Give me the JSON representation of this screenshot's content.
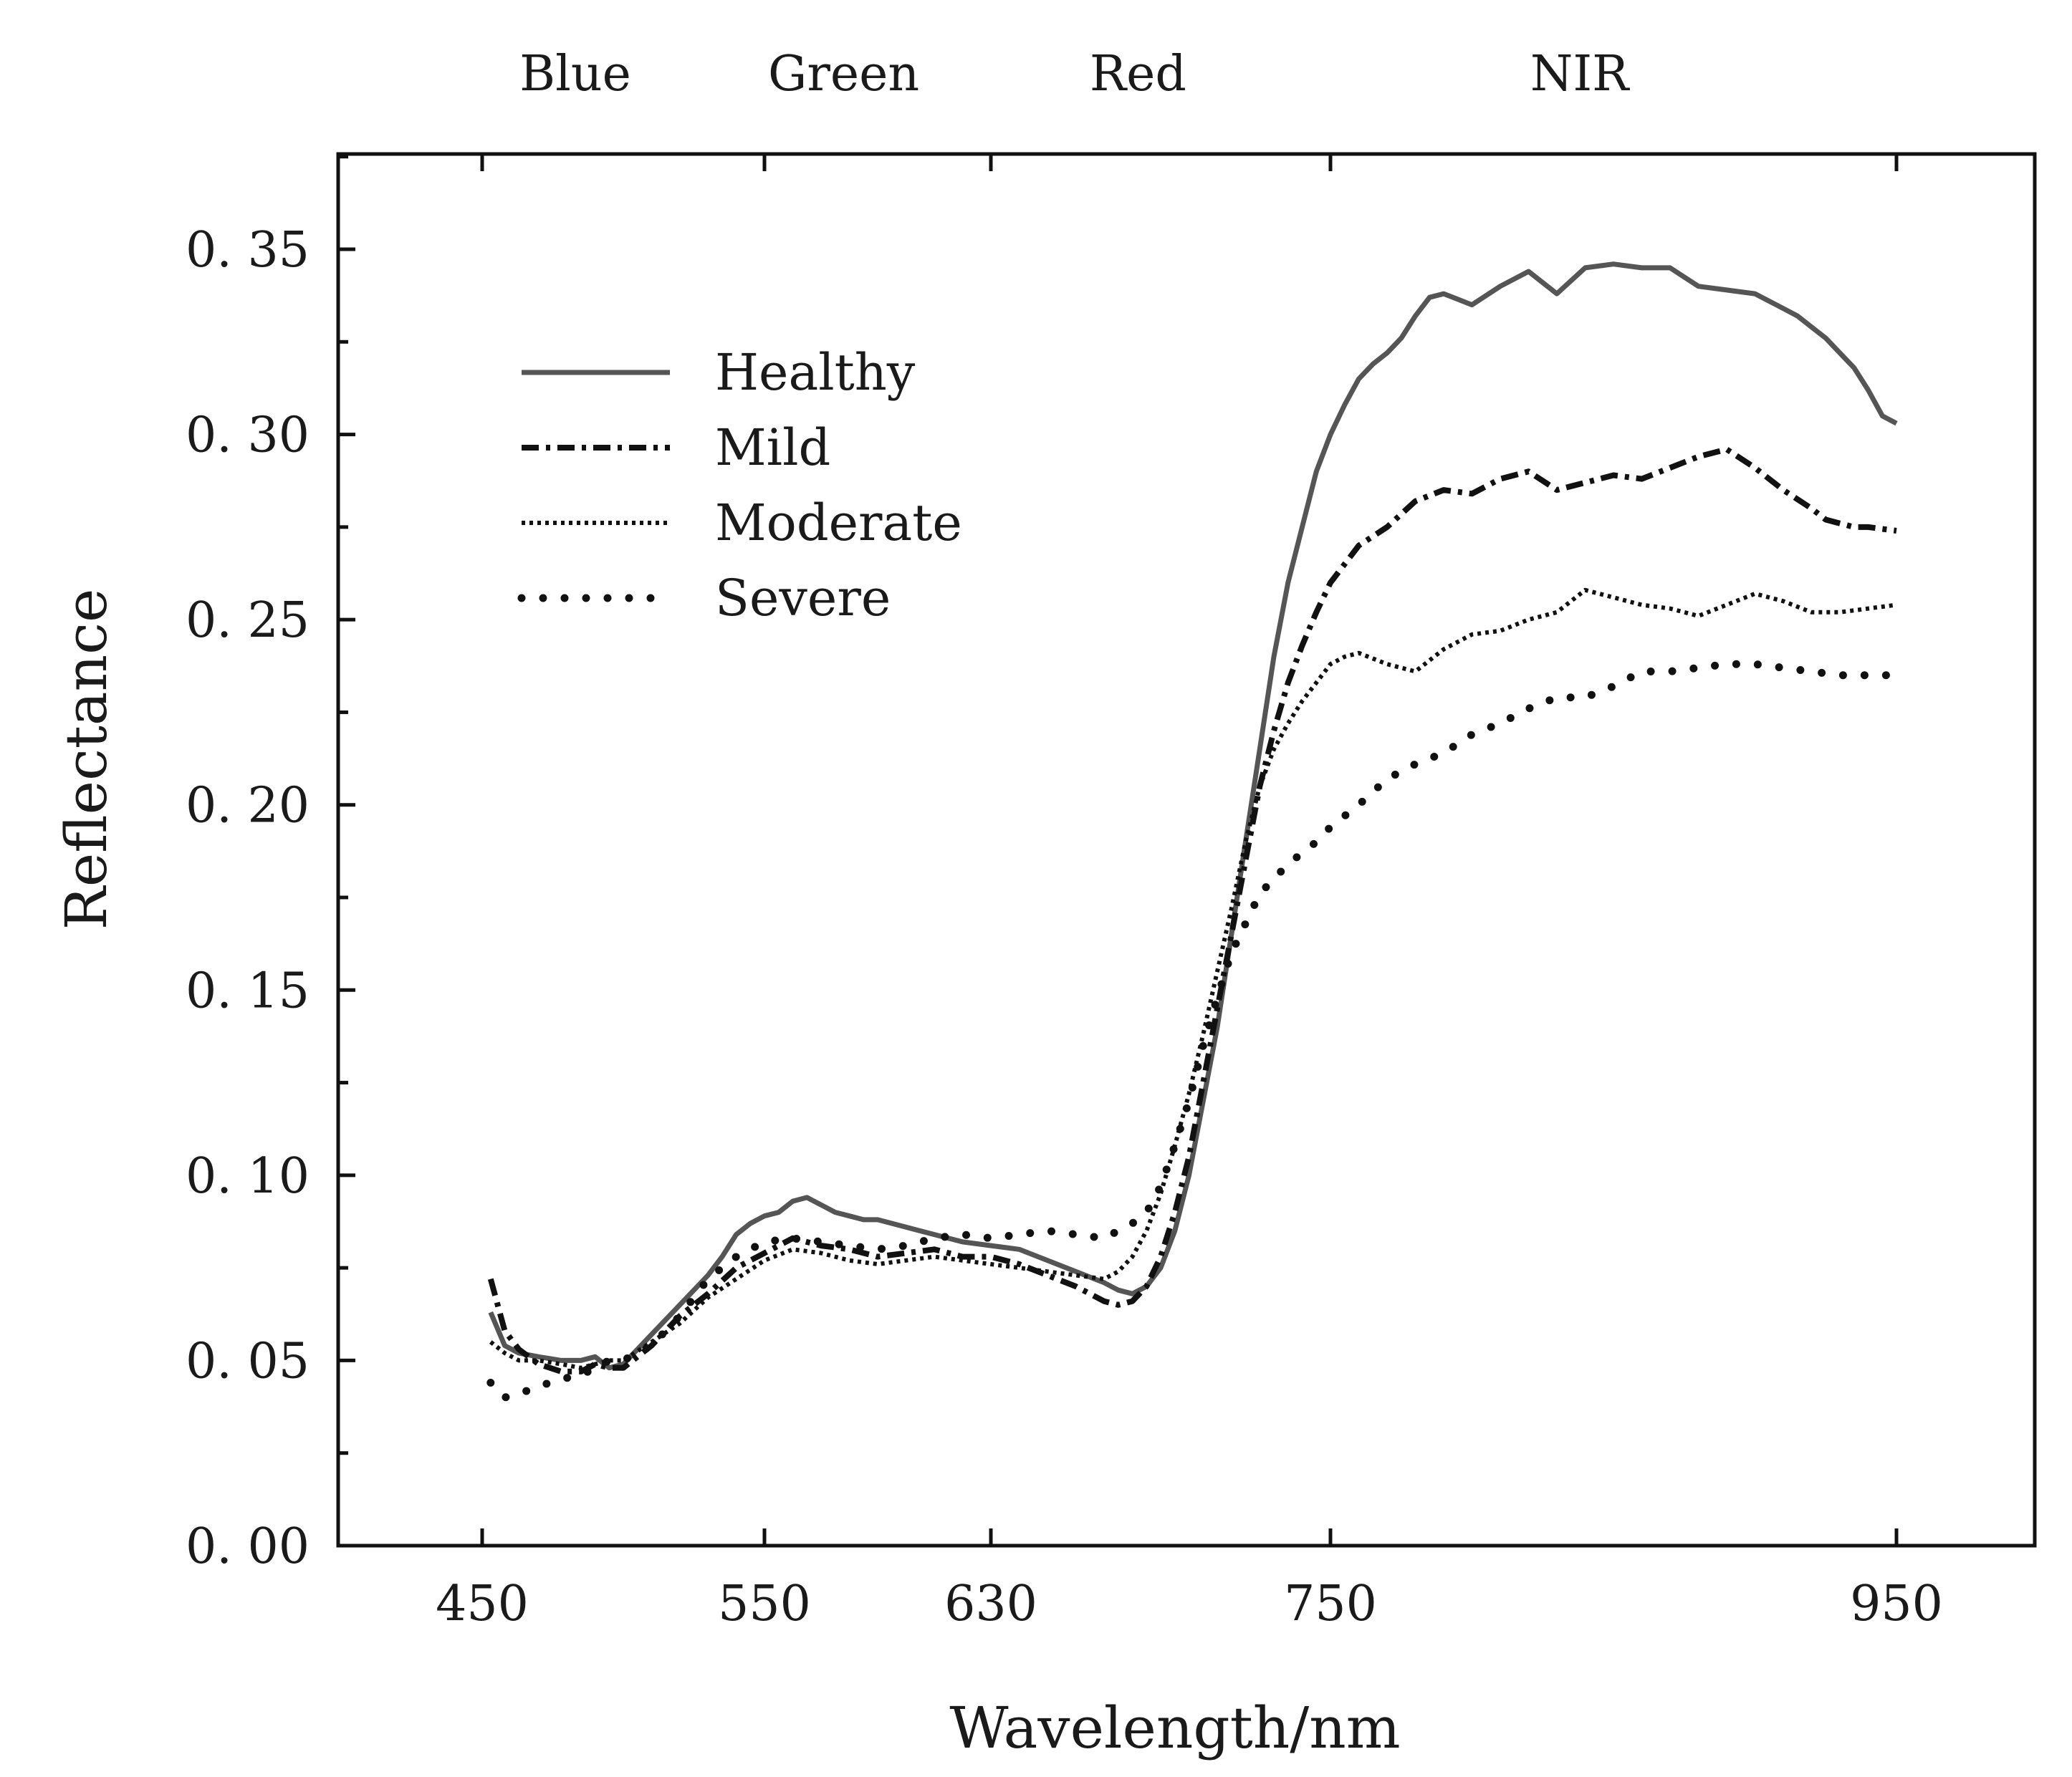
{
  "chart_data": {
    "type": "line",
    "title": "",
    "xlabel": "Wavelength/nm",
    "ylabel": "Reflectance",
    "xlim": [
      400,
      1000
    ],
    "ylim": [
      0,
      0.375
    ],
    "x_ticks": [
      450,
      550,
      630,
      750,
      950
    ],
    "x_tick_labels": [
      "450",
      "550",
      "630",
      "750",
      "950"
    ],
    "y_ticks": [
      0,
      0.05,
      0.1,
      0.15,
      0.2,
      0.25,
      0.3,
      0.35
    ],
    "y_tick_labels": [
      "0. 00",
      "0. 05",
      "0. 10",
      "0. 15",
      "0. 20",
      "0. 25",
      "0. 30",
      "0. 35"
    ],
    "y_minor_step": 0.025,
    "band_labels": [
      {
        "label": "Blue",
        "x": 483
      },
      {
        "label": "Green",
        "x": 578
      },
      {
        "label": "Red",
        "x": 682
      },
      {
        "label": "NIR",
        "x": 838
      }
    ],
    "legend_position": "upper-left",
    "grid": false,
    "series": [
      {
        "name": "Healthy",
        "style": "solid",
        "color": "#555555",
        "x": [
          453,
          458,
          463,
          470,
          478,
          485,
          490,
          495,
          500,
          505,
          510,
          520,
          530,
          535,
          540,
          545,
          550,
          555,
          560,
          565,
          570,
          575,
          580,
          585,
          590,
          600,
          610,
          620,
          630,
          640,
          650,
          660,
          670,
          675,
          680,
          685,
          690,
          695,
          700,
          705,
          710,
          715,
          720,
          725,
          730,
          735,
          740,
          745,
          750,
          755,
          760,
          765,
          770,
          775,
          780,
          785,
          790,
          800,
          810,
          820,
          830,
          840,
          850,
          860,
          870,
          880,
          890,
          900,
          910,
          915,
          920,
          925,
          930,
          935,
          940,
          945,
          950
        ],
        "y": [
          0.063,
          0.054,
          0.052,
          0.051,
          0.05,
          0.05,
          0.051,
          0.048,
          0.049,
          0.053,
          0.057,
          0.065,
          0.073,
          0.078,
          0.084,
          0.087,
          0.089,
          0.09,
          0.093,
          0.094,
          0.092,
          0.09,
          0.089,
          0.088,
          0.088,
          0.086,
          0.084,
          0.082,
          0.081,
          0.08,
          0.077,
          0.074,
          0.071,
          0.069,
          0.068,
          0.07,
          0.075,
          0.085,
          0.1,
          0.12,
          0.14,
          0.165,
          0.19,
          0.215,
          0.24,
          0.26,
          0.275,
          0.29,
          0.3,
          0.308,
          0.315,
          0.319,
          0.322,
          0.326,
          0.332,
          0.337,
          0.338,
          0.335,
          0.34,
          0.344,
          0.338,
          0.345,
          0.346,
          0.345,
          0.345,
          0.34,
          0.339,
          0.338,
          0.334,
          0.332,
          0.329,
          0.326,
          0.322,
          0.318,
          0.312,
          0.305,
          0.303
        ]
      },
      {
        "name": "Mild",
        "style": "dashdot",
        "color": "#111111",
        "x": [
          453,
          458,
          463,
          470,
          478,
          485,
          490,
          495,
          500,
          505,
          510,
          520,
          530,
          540,
          550,
          555,
          560,
          570,
          580,
          590,
          600,
          610,
          620,
          630,
          640,
          650,
          660,
          670,
          675,
          680,
          685,
          690,
          695,
          700,
          705,
          710,
          715,
          720,
          725,
          730,
          735,
          740,
          745,
          750,
          755,
          760,
          770,
          780,
          790,
          800,
          810,
          820,
          830,
          840,
          850,
          860,
          870,
          880,
          890,
          900,
          910,
          920,
          925,
          930,
          935,
          940,
          950
        ],
        "y": [
          0.072,
          0.058,
          0.053,
          0.049,
          0.047,
          0.047,
          0.049,
          0.048,
          0.048,
          0.051,
          0.054,
          0.062,
          0.068,
          0.075,
          0.079,
          0.081,
          0.083,
          0.081,
          0.08,
          0.078,
          0.079,
          0.08,
          0.078,
          0.078,
          0.076,
          0.073,
          0.07,
          0.066,
          0.065,
          0.066,
          0.07,
          0.078,
          0.09,
          0.105,
          0.125,
          0.145,
          0.165,
          0.185,
          0.205,
          0.22,
          0.233,
          0.243,
          0.252,
          0.26,
          0.265,
          0.27,
          0.275,
          0.282,
          0.285,
          0.284,
          0.288,
          0.29,
          0.285,
          0.287,
          0.289,
          0.288,
          0.291,
          0.294,
          0.296,
          0.291,
          0.285,
          0.28,
          0.277,
          0.276,
          0.275,
          0.275,
          0.274
        ]
      },
      {
        "name": "Moderate",
        "style": "dense-dot",
        "color": "#111111",
        "x": [
          453,
          458,
          463,
          470,
          478,
          485,
          490,
          495,
          500,
          510,
          520,
          530,
          540,
          550,
          560,
          570,
          580,
          590,
          600,
          610,
          620,
          630,
          640,
          650,
          660,
          670,
          675,
          680,
          685,
          690,
          695,
          700,
          705,
          710,
          715,
          720,
          725,
          730,
          735,
          740,
          745,
          750,
          755,
          760,
          770,
          780,
          790,
          800,
          810,
          820,
          830,
          840,
          850,
          860,
          870,
          880,
          890,
          900,
          910,
          920,
          930,
          940,
          950
        ],
        "y": [
          0.055,
          0.052,
          0.05,
          0.05,
          0.049,
          0.048,
          0.049,
          0.05,
          0.05,
          0.055,
          0.06,
          0.067,
          0.072,
          0.077,
          0.08,
          0.079,
          0.077,
          0.076,
          0.077,
          0.078,
          0.077,
          0.076,
          0.075,
          0.074,
          0.073,
          0.072,
          0.074,
          0.078,
          0.085,
          0.095,
          0.108,
          0.122,
          0.138,
          0.155,
          0.172,
          0.19,
          0.205,
          0.215,
          0.222,
          0.228,
          0.233,
          0.238,
          0.24,
          0.241,
          0.238,
          0.236,
          0.242,
          0.246,
          0.247,
          0.25,
          0.252,
          0.258,
          0.256,
          0.254,
          0.253,
          0.251,
          0.254,
          0.257,
          0.255,
          0.252,
          0.252,
          0.253,
          0.254
        ]
      },
      {
        "name": "Severe",
        "style": "sparse-dot",
        "color": "#111111",
        "x": [
          453,
          458,
          463,
          470,
          478,
          485,
          490,
          495,
          500,
          510,
          520,
          530,
          540,
          550,
          560,
          570,
          580,
          590,
          600,
          610,
          620,
          630,
          640,
          650,
          660,
          670,
          675,
          680,
          685,
          690,
          695,
          700,
          705,
          710,
          715,
          720,
          725,
          730,
          735,
          740,
          745,
          750,
          760,
          770,
          780,
          790,
          800,
          810,
          820,
          830,
          840,
          850,
          860,
          870,
          880,
          890,
          900,
          910,
          920,
          930,
          940,
          950
        ],
        "y": [
          0.044,
          0.04,
          0.041,
          0.043,
          0.045,
          0.046,
          0.048,
          0.05,
          0.05,
          0.054,
          0.062,
          0.072,
          0.078,
          0.082,
          0.083,
          0.082,
          0.081,
          0.08,
          0.081,
          0.083,
          0.084,
          0.083,
          0.084,
          0.085,
          0.084,
          0.083,
          0.085,
          0.087,
          0.09,
          0.097,
          0.108,
          0.12,
          0.135,
          0.148,
          0.16,
          0.168,
          0.176,
          0.18,
          0.184,
          0.187,
          0.19,
          0.194,
          0.2,
          0.207,
          0.211,
          0.214,
          0.219,
          0.222,
          0.226,
          0.229,
          0.229,
          0.232,
          0.236,
          0.236,
          0.237,
          0.238,
          0.238,
          0.237,
          0.236,
          0.235,
          0.235,
          0.235
        ]
      }
    ]
  }
}
